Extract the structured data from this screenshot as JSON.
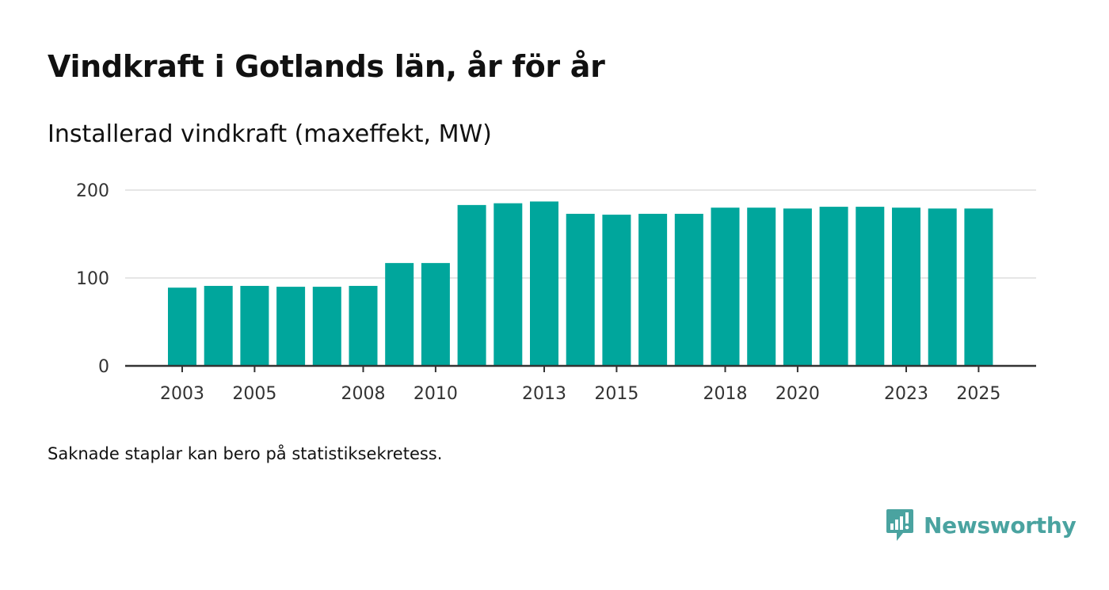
{
  "header": {
    "title": "Vindkraft i Gotlands län, år för år",
    "subtitle": "Installerad vindkraft (maxeffekt, MW)"
  },
  "footer": {
    "note": "Saknade staplar kan bero på statistiksekretess.",
    "brand": "Newsworthy"
  },
  "colors": {
    "bar": "#00a69c",
    "grid": "#dddddd",
    "axis": "#333333",
    "brand": "#4aa3a0"
  },
  "chart_data": {
    "type": "bar",
    "title": "Vindkraft i Gotlands län, år för år",
    "subtitle": "Installerad vindkraft (maxeffekt, MW)",
    "xlabel": "",
    "ylabel": "",
    "ylim": [
      0,
      200
    ],
    "yticks": [
      0,
      100,
      200
    ],
    "grid": true,
    "categories": [
      2003,
      2004,
      2005,
      2006,
      2007,
      2008,
      2009,
      2010,
      2011,
      2012,
      2013,
      2014,
      2015,
      2016,
      2017,
      2018,
      2019,
      2020,
      2021,
      2022,
      2023,
      2024,
      2025
    ],
    "xtick_labels": [
      2003,
      2005,
      2008,
      2010,
      2013,
      2015,
      2018,
      2020,
      2023,
      2025
    ],
    "values": [
      89,
      91,
      91,
      90,
      90,
      91,
      117,
      117,
      183,
      185,
      187,
      173,
      172,
      173,
      173,
      180,
      180,
      179,
      181,
      181,
      180,
      179,
      179
    ]
  }
}
